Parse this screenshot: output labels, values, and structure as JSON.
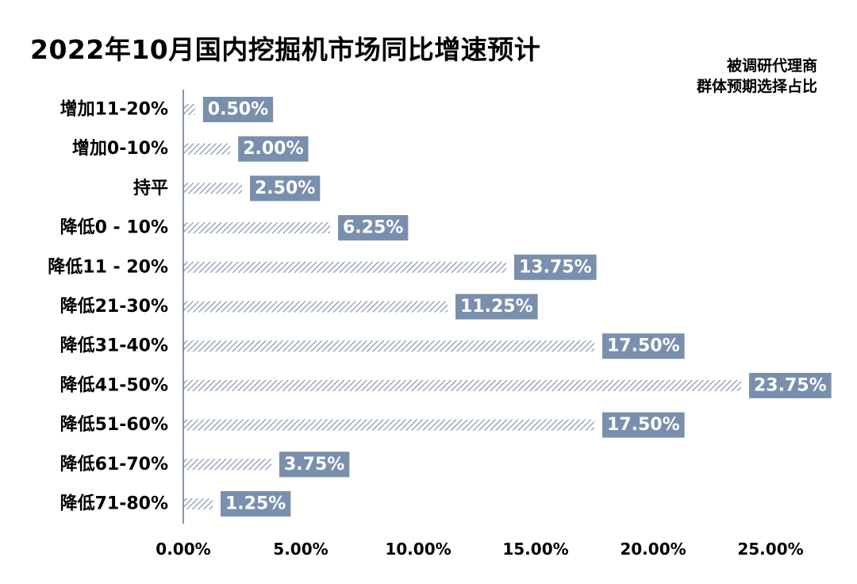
{
  "title": "2022年10月国内挖掘机市场同比增速预计",
  "subtitle_lines": [
    "被调研代理商",
    "群体预期选择占比"
  ],
  "colors": {
    "bar_hatch": "#4a6488",
    "label_bg": "#7a8fae",
    "axis_line": "#5a7290"
  },
  "chart_data": {
    "type": "bar",
    "orientation": "horizontal",
    "title": "2022年10月国内挖掘机市场同比增速预计",
    "subtitle": "被调研代理商群体预期选择占比",
    "categories": [
      "增加11-20%",
      "增加0-10%",
      "持平",
      "降低0 - 10%",
      "降低11 - 20%",
      "降低21-30%",
      "降低31-40%",
      "降低41-50%",
      "降低51-60%",
      "降低61-70%",
      "降低71-80%"
    ],
    "values": [
      0.5,
      2.0,
      2.5,
      6.25,
      13.75,
      11.25,
      17.5,
      23.75,
      17.5,
      3.75,
      1.25
    ],
    "data_labels": [
      "0.50%",
      "2.00%",
      "2.50%",
      "6.25%",
      "13.75%",
      "11.25%",
      "17.50%",
      "23.75%",
      "17.50%",
      "3.75%",
      "1.25%"
    ],
    "x_ticks": [
      0,
      5,
      10,
      15,
      20,
      25
    ],
    "x_tick_labels": [
      "0.00%",
      "5.00%",
      "10.00%",
      "15.00%",
      "20.00%",
      "25.00%"
    ],
    "xlim": [
      0,
      25
    ],
    "grid": false,
    "legend": "none"
  }
}
